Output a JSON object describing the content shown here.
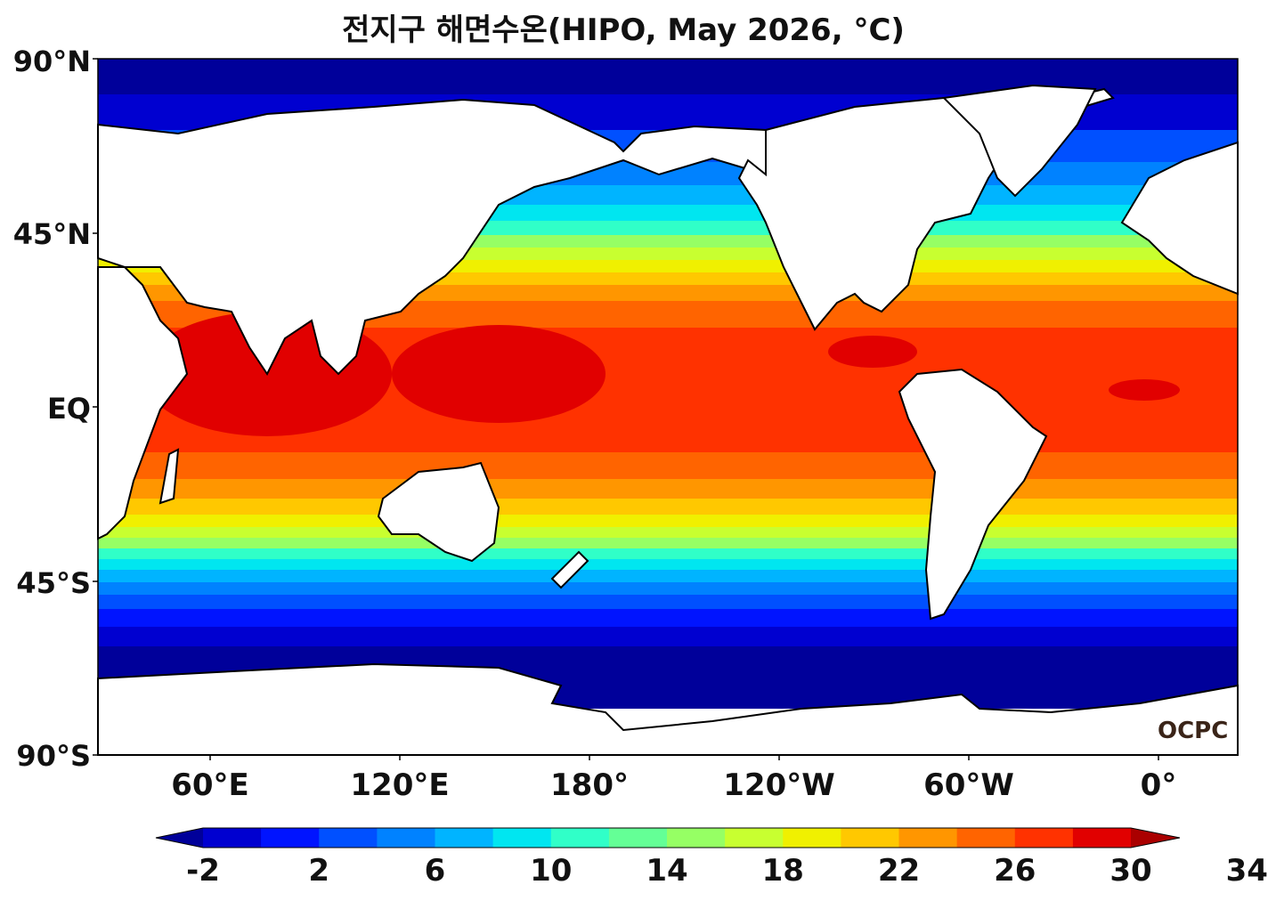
{
  "title": "전지구 해면수온(HIPO, May 2026, °C)",
  "logo": "OCPC",
  "lat_labels": [
    "90°N",
    "45°N",
    "EQ",
    "45°S",
    "90°S"
  ],
  "lon_labels": [
    "60°E",
    "120°E",
    "180°",
    "120°W",
    "60°W",
    "0°"
  ],
  "colorbar": {
    "tick_labels": [
      "-2",
      "2",
      "6",
      "10",
      "14",
      "18",
      "22",
      "26",
      "30",
      "34"
    ],
    "colors": [
      "#00009a",
      "#0000d0",
      "#0014ff",
      "#0050ff",
      "#0082ff",
      "#00b4ff",
      "#00e6f0",
      "#30ffc8",
      "#64ff96",
      "#96ff64",
      "#c8ff30",
      "#f0f000",
      "#ffc800",
      "#ff9600",
      "#ff6400",
      "#ff3200",
      "#e10000",
      "#aa0000"
    ]
  },
  "chart_data": {
    "type": "heatmap",
    "title": "전지구 해면수온(HIPO, May 2026, °C)",
    "variable": "sea surface temperature",
    "unit": "°C",
    "lon_range": [
      25,
      20
    ],
    "lat_range": [
      -90,
      90
    ],
    "color_levels": [
      -2,
      0,
      2,
      4,
      6,
      8,
      10,
      12,
      14,
      16,
      18,
      20,
      22,
      24,
      26,
      28,
      30,
      32,
      34
    ],
    "extend": "both"
  }
}
